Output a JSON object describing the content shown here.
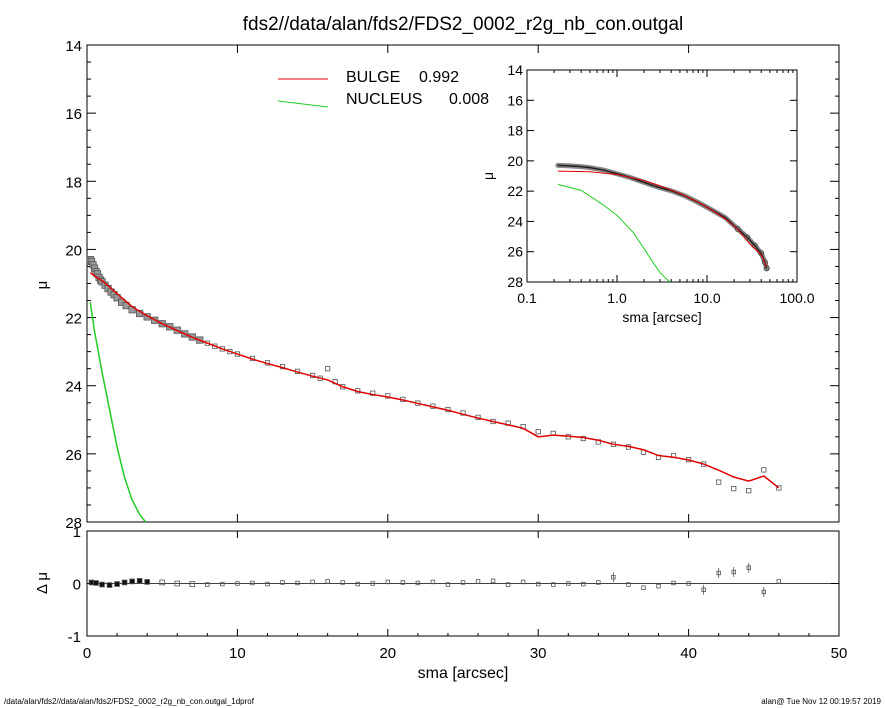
{
  "title": "fds2//data/alan/fds2/FDS2_0002_r2g_nb_con.outgal",
  "footer_left": "/data/alan/fds2//data/alan/fds2/FDS2_0002_r2g_nb_con.outgal_1dprof",
  "footer_right": "alan@  Tue Nov 12 00:19:57 2019",
  "colors": {
    "bulge": "#e00000",
    "nucleus": "#22cc22",
    "data": "#555555",
    "axes": "#000000"
  },
  "chart_data": [
    {
      "type": "scatter",
      "panel": "main",
      "xlabel": "sma [arcsec]",
      "ylabel": "μ",
      "xlim": [
        0,
        50
      ],
      "ylim": [
        28,
        14
      ],
      "x_ticks": [
        "0",
        "10",
        "20",
        "30",
        "40",
        "50"
      ],
      "y_ticks": [
        "14",
        "16",
        "18",
        "20",
        "22",
        "24",
        "26",
        "28"
      ],
      "legend": [
        {
          "name": "BULGE",
          "value": "0.992",
          "color": "#e00000"
        },
        {
          "name": "NUCLEUS",
          "value": "0.008",
          "color": "#22cc22"
        }
      ],
      "legend_position": "top-center",
      "series": [
        {
          "name": "data",
          "x": [
            0.22,
            0.3,
            0.4,
            0.5,
            0.6,
            0.7,
            0.8,
            0.9,
            1.0,
            1.2,
            1.4,
            1.6,
            1.8,
            2.0,
            2.3,
            2.6,
            3.0,
            3.5,
            4.0,
            4.5,
            5.0,
            5.5,
            6.0,
            6.5,
            7.0,
            7.5,
            8.0,
            8.5,
            9.0,
            9.5,
            10,
            11,
            12,
            13,
            14,
            15,
            15.5,
            16,
            16.5,
            17,
            18,
            19,
            20,
            21,
            22,
            23,
            24,
            25,
            26,
            27,
            28,
            29,
            30,
            31,
            32,
            33,
            34,
            35,
            36,
            37,
            38,
            39,
            40,
            41,
            42,
            43,
            44,
            45,
            46
          ],
          "y": [
            20.3,
            20.35,
            20.45,
            20.55,
            20.65,
            20.72,
            20.82,
            20.9,
            20.95,
            21.05,
            21.15,
            21.25,
            21.33,
            21.42,
            21.55,
            21.65,
            21.77,
            21.88,
            21.98,
            22.08,
            22.18,
            22.27,
            22.37,
            22.48,
            22.57,
            22.66,
            22.75,
            22.84,
            22.92,
            23.0,
            23.07,
            23.2,
            23.33,
            23.44,
            23.58,
            23.7,
            23.78,
            23.5,
            23.88,
            24.03,
            24.15,
            24.22,
            24.3,
            24.4,
            24.51,
            24.6,
            24.7,
            24.8,
            24.93,
            25.05,
            25.1,
            25.2,
            25.35,
            25.4,
            25.5,
            25.55,
            25.65,
            25.72,
            25.8,
            25.95,
            26.1,
            26.05,
            26.17,
            26.3,
            26.83,
            27.02,
            27.08,
            26.47,
            27.0
          ]
        },
        {
          "name": "BULGE",
          "x": [
            0.22,
            0.5,
            1.0,
            1.5,
            2.0,
            3.0,
            4.0,
            5.0,
            6.0,
            7.0,
            8.0,
            9.0,
            10,
            11,
            12,
            13,
            14,
            15,
            16,
            17,
            18,
            19,
            20,
            21,
            22,
            23,
            24,
            25,
            26,
            27,
            28,
            29,
            30,
            31,
            32,
            33,
            34,
            35,
            36,
            37,
            38,
            39,
            40,
            41,
            42,
            43,
            44,
            45,
            46
          ],
          "y": [
            20.68,
            20.78,
            20.92,
            21.1,
            21.3,
            21.68,
            21.95,
            22.18,
            22.38,
            22.58,
            22.75,
            22.92,
            23.07,
            23.22,
            23.35,
            23.47,
            23.6,
            23.72,
            23.83,
            24.03,
            24.17,
            24.26,
            24.33,
            24.42,
            24.52,
            24.62,
            24.72,
            24.84,
            24.95,
            25.05,
            25.15,
            25.25,
            25.5,
            25.45,
            25.48,
            25.52,
            25.6,
            25.72,
            25.78,
            25.88,
            26.05,
            26.1,
            26.18,
            26.3,
            26.48,
            26.68,
            26.8,
            26.65,
            27.0
          ]
        },
        {
          "name": "NUCLEUS",
          "x": [
            0.22,
            0.5,
            1.0,
            1.5,
            2.0,
            2.5,
            3.0,
            3.5,
            3.9
          ],
          "y": [
            21.55,
            22.4,
            23.6,
            24.7,
            25.8,
            26.7,
            27.35,
            27.78,
            28.0
          ]
        }
      ]
    },
    {
      "type": "scatter",
      "panel": "residual",
      "xlabel": "sma [arcsec]",
      "ylabel": "Δ μ",
      "xlim": [
        0,
        50
      ],
      "ylim": [
        -1,
        1
      ],
      "y_ticks": [
        "1",
        "0",
        "-1"
      ],
      "series": [
        {
          "name": "residual",
          "x": [
            0.3,
            0.6,
            1.0,
            1.5,
            2.0,
            2.5,
            3.0,
            3.5,
            4.0,
            5,
            6,
            7,
            8,
            9,
            10,
            11,
            12,
            13,
            14,
            15,
            16,
            17,
            18,
            19,
            20,
            21,
            22,
            23,
            24,
            25,
            26,
            27,
            28,
            29,
            30,
            31,
            32,
            33,
            34,
            35,
            36,
            37,
            38,
            39,
            40,
            41,
            42,
            43,
            44,
            45,
            46
          ],
          "y": [
            0.02,
            0.01,
            -0.02,
            -0.03,
            -0.01,
            0.02,
            0.04,
            0.05,
            0.03,
            0.02,
            0.0,
            -0.01,
            -0.02,
            -0.01,
            0.0,
            0.01,
            -0.01,
            0.02,
            0.01,
            0.03,
            0.04,
            0.02,
            -0.01,
            0.0,
            0.03,
            0.02,
            0.01,
            0.03,
            -0.02,
            0.02,
            0.04,
            0.05,
            -0.02,
            0.03,
            -0.01,
            -0.02,
            0.0,
            -0.01,
            0.02,
            0.12,
            -0.02,
            -0.08,
            -0.05,
            0.01,
            0.0,
            -0.12,
            0.2,
            0.22,
            0.3,
            -0.16,
            0.04
          ]
        }
      ]
    },
    {
      "type": "scatter",
      "panel": "inset",
      "xlabel": "sma [arcsec]",
      "ylabel": "μ",
      "xscale": "log",
      "xlim": [
        0.1,
        100
      ],
      "ylim": [
        28,
        14
      ],
      "x_ticks": [
        "0.1",
        "1.0",
        "10.0",
        "100.0"
      ],
      "y_ticks": [
        "14",
        "16",
        "18",
        "20",
        "22",
        "24",
        "26",
        "28"
      ],
      "series": [
        {
          "name": "data",
          "x": [
            0.22,
            0.3,
            0.4,
            0.5,
            0.7,
            1.0,
            1.4,
            2.0,
            2.8,
            4.0,
            5.6,
            8.0,
            11,
            16,
            22,
            28,
            34,
            40,
            44,
            46
          ],
          "y": [
            20.3,
            20.33,
            20.38,
            20.45,
            20.6,
            20.85,
            21.1,
            21.42,
            21.72,
            21.98,
            22.3,
            22.75,
            23.2,
            23.75,
            24.5,
            25.05,
            25.6,
            26.1,
            26.7,
            27.1
          ]
        },
        {
          "name": "BULGE",
          "x": [
            0.22,
            0.5,
            1.0,
            2.0,
            3.0,
            5.0,
            8.0,
            12,
            16,
            22,
            30,
            40,
            46
          ],
          "y": [
            20.68,
            20.72,
            20.9,
            21.3,
            21.65,
            22.15,
            22.72,
            23.35,
            23.83,
            24.52,
            25.5,
            26.2,
            27.0
          ]
        },
        {
          "name": "NUCLEUS",
          "x": [
            0.22,
            0.4,
            0.7,
            1.0,
            1.5,
            2.0,
            2.5,
            3.0,
            3.5,
            3.9
          ],
          "y": [
            21.55,
            21.95,
            22.9,
            23.6,
            24.7,
            25.8,
            26.7,
            27.35,
            27.78,
            28.0
          ]
        }
      ]
    }
  ]
}
